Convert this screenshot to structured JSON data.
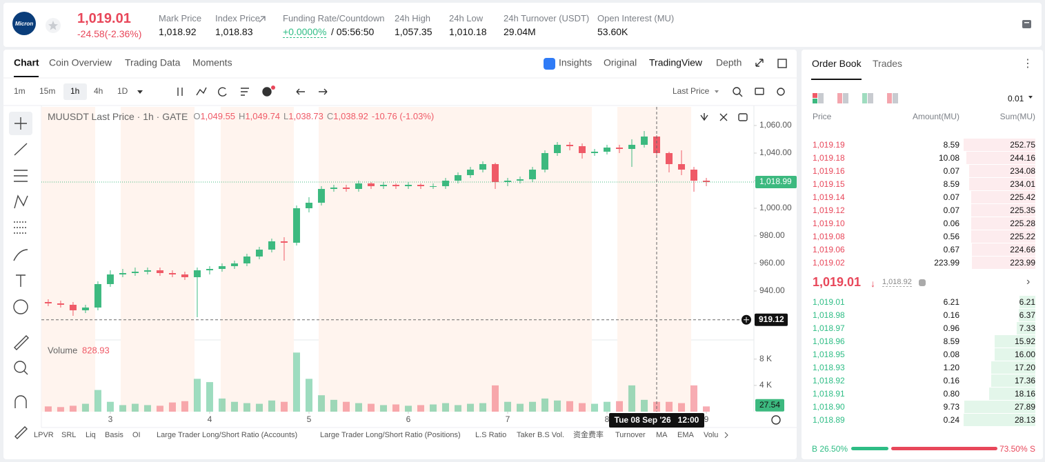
{
  "header": {
    "logo": "Micron",
    "price": "1,019.01",
    "change": "-24.58(-2.36%)",
    "stats": [
      {
        "label": "Mark Price",
        "value": "1,018.92"
      },
      {
        "label": "Index Price",
        "value": "1,018.83"
      },
      {
        "label": "Funding Rate/Countdown",
        "value": "+0.0000%",
        "extra": "/ 05:56:50"
      },
      {
        "label": "24h High",
        "value": "1,057.35"
      },
      {
        "label": "24h Low",
        "value": "1,010.18"
      },
      {
        "label": "24h Turnover (USDT)",
        "value": "29.04M"
      },
      {
        "label": "Open Interest (MU)",
        "value": "53.60K"
      }
    ]
  },
  "chart_panel": {
    "tabs": [
      "Chart",
      "Coin Overview",
      "Trading Data",
      "Moments"
    ],
    "views": [
      "Insights",
      "Original",
      "TradingView",
      "Depth"
    ],
    "intervals": [
      "1m",
      "15m",
      "1h",
      "4h",
      "1D"
    ],
    "price_source": "Last Price",
    "indicators": [
      "LPVR",
      "SRL",
      "Liq",
      "Basis",
      "OI",
      "Large Trader Long/Short Ratio (Accounts)",
      "Large Trader Long/Short Ratio (Positions)",
      "L.S Ratio",
      "Taker B.S Vol.",
      "资金费率",
      "Turnover",
      "MA",
      "EMA",
      "Volu"
    ]
  },
  "chart_data": {
    "type": "candlestick",
    "legend": {
      "symbol": "MUUSDT Last Price · 1h · GATE",
      "ohlc": [
        {
          "key": "O",
          "value": "1,049.55"
        },
        {
          "key": "H",
          "value": "1,049.74"
        },
        {
          "key": "L",
          "value": "1,038.73"
        },
        {
          "key": "C",
          "value": "1,038.92"
        }
      ],
      "change": "-10.76 (-1.03%)"
    },
    "x": [
      2.375,
      2.5,
      2.625,
      2.75,
      2.875,
      3,
      3.125,
      3.25,
      3.375,
      3.5,
      3.625,
      3.75,
      3.875,
      4,
      4.125,
      4.25,
      4.375,
      4.5,
      4.625,
      4.75,
      4.875,
      5,
      5.125,
      5.25,
      5.375,
      5.5,
      5.625,
      5.75,
      5.875,
      6,
      6.125,
      6.25,
      6.375,
      6.5,
      6.625,
      6.75,
      6.875,
      7,
      7.125,
      7.25,
      7.375,
      7.5,
      7.625,
      7.75,
      7.875,
      8,
      8.125,
      8.25,
      8.375,
      8.5,
      8.625,
      8.75,
      8.875,
      9
    ],
    "open": [
      932,
      931,
      930,
      926,
      928,
      945,
      952,
      953,
      954,
      955,
      953,
      952,
      950,
      955,
      956,
      958,
      960,
      965,
      970,
      976,
      975,
      1000,
      1004,
      1014,
      1015,
      1014,
      1018,
      1016,
      1017,
      1016,
      1017,
      1016,
      1016,
      1020,
      1024,
      1028,
      1032,
      1019,
      1020,
      1021,
      1028,
      1040,
      1046,
      1045,
      1040,
      1041,
      1044,
      1043,
      1046,
      1052,
      1040,
      1032,
      1028,
      1020
    ],
    "high": [
      934,
      933,
      932,
      930,
      947,
      955,
      956,
      957,
      957,
      957,
      955,
      954,
      957,
      958,
      960,
      962,
      967,
      972,
      978,
      979,
      1002,
      1008,
      1016,
      1017,
      1017,
      1020,
      1019,
      1019,
      1018,
      1019,
      1018,
      1018,
      1022,
      1026,
      1030,
      1034,
      1033,
      1022,
      1023,
      1030,
      1042,
      1048,
      1048,
      1047,
      1043,
      1046,
      1046,
      1050,
      1056,
      1053,
      1041,
      1042,
      1030,
      1022
    ],
    "low": [
      929,
      928,
      922,
      924,
      926,
      943,
      950,
      951,
      952,
      951,
      950,
      948,
      921,
      952,
      954,
      956,
      958,
      963,
      968,
      962,
      973,
      997,
      1002,
      1012,
      1012,
      1012,
      1014,
      1014,
      1014,
      1014,
      1014,
      1014,
      1014,
      1018,
      1022,
      1026,
      1014,
      1016,
      1018,
      1019,
      1026,
      1038,
      1042,
      1036,
      1038,
      1039,
      1040,
      1030,
      1044,
      1038,
      1026,
      1024,
      1012,
      1016
    ],
    "close": [
      931,
      930,
      926,
      928,
      945,
      952,
      953,
      954,
      955,
      953,
      952,
      950,
      955,
      956,
      958,
      960,
      965,
      970,
      976,
      975,
      1000,
      1004,
      1014,
      1015,
      1014,
      1018,
      1016,
      1017,
      1016,
      1017,
      1016,
      1016,
      1020,
      1024,
      1028,
      1032,
      1019,
      1020,
      1021,
      1028,
      1040,
      1046,
      1045,
      1040,
      1041,
      1044,
      1043,
      1046,
      1052,
      1040,
      1032,
      1028,
      1020,
      1019
    ],
    "volume": [
      800,
      700,
      900,
      1200,
      3300,
      1500,
      1000,
      1200,
      1000,
      900,
      1400,
      1600,
      5000,
      4500,
      2000,
      1500,
      1300,
      1200,
      1700,
      1500,
      9000,
      5000,
      2500,
      1800,
      1500,
      1300,
      1200,
      1000,
      1100,
      900,
      1000,
      1100,
      1300,
      1000,
      1200,
      1300,
      4000,
      1500,
      1200,
      1500,
      2000,
      1700,
      1600,
      1300,
      1200,
      1500,
      1600,
      4000,
      1800,
      1500,
      1500,
      1300,
      4000,
      800
    ],
    "up_color": "#3cb97f",
    "down_color": "#ef5a67",
    "xlim": [
      2.306,
      9.479
    ],
    "xticks": [
      3,
      4,
      5,
      6,
      7,
      8,
      9
    ],
    "ylim": [
      906,
      1073.5
    ],
    "yticks": [
      {
        "value": 940,
        "label": "940.00"
      },
      {
        "value": 960,
        "label": "960.00"
      },
      {
        "value": 980,
        "label": "980.00"
      },
      {
        "value": 1000,
        "label": "1,000.00"
      },
      {
        "value": 1020,
        "label": "1,020.00"
      },
      {
        "value": 1040,
        "label": "1,040.00"
      },
      {
        "value": 1060,
        "label": "1,060.00"
      }
    ],
    "volume_title": "Volume",
    "volume_value": "828.93",
    "volume_ylim": [
      0,
      10500
    ],
    "volume_yticks": [
      {
        "value": 4000,
        "label": "4 K"
      },
      {
        "value": 8000,
        "label": "8 K"
      }
    ],
    "last_price": {
      "value": 1018.99,
      "label": "1,018.99"
    },
    "last_volume": {
      "value": 27.54,
      "label": "27.54"
    },
    "crosshair": {
      "x": 8.5,
      "y": 919.12,
      "y_label": "919.12",
      "x_label": "Tue 08 Sep '26   12:00"
    }
  },
  "order_book": {
    "tabs": [
      "Order Book",
      "Trades"
    ],
    "precision": "0.01",
    "headers": [
      "Price",
      "Amount(MU)",
      "Sum(MU)"
    ],
    "asks": [
      [
        "1,019.19",
        "8.59",
        "252.75"
      ],
      [
        "1,019.18",
        "10.08",
        "244.16"
      ],
      [
        "1,019.16",
        "0.07",
        "234.08"
      ],
      [
        "1,019.15",
        "8.59",
        "234.01"
      ],
      [
        "1,019.14",
        "0.07",
        "225.42"
      ],
      [
        "1,019.12",
        "0.07",
        "225.35"
      ],
      [
        "1,019.10",
        "0.06",
        "225.28"
      ],
      [
        "1,019.08",
        "0.56",
        "225.22"
      ],
      [
        "1,019.06",
        "0.67",
        "224.66"
      ],
      [
        "1,019.02",
        "223.99",
        "223.99"
      ]
    ],
    "mid_price": "1,019.01",
    "mark_price": "1,018.92",
    "bids": [
      [
        "1,019.01",
        "6.21",
        "6.21"
      ],
      [
        "1,018.98",
        "0.16",
        "6.37"
      ],
      [
        "1,018.97",
        "0.96",
        "7.33"
      ],
      [
        "1,018.96",
        "8.59",
        "15.92"
      ],
      [
        "1,018.95",
        "0.08",
        "16.00"
      ],
      [
        "1,018.93",
        "1.20",
        "17.20"
      ],
      [
        "1,018.92",
        "0.16",
        "17.36"
      ],
      [
        "1,018.91",
        "0.80",
        "18.16"
      ],
      [
        "1,018.90",
        "9.73",
        "27.89"
      ],
      [
        "1,018.89",
        "0.24",
        "28.13"
      ]
    ],
    "buy_ratio": {
      "value": 26.5,
      "label": "B 26.50%"
    },
    "sell_ratio": {
      "value": 73.5,
      "label": "73.50% S"
    }
  }
}
